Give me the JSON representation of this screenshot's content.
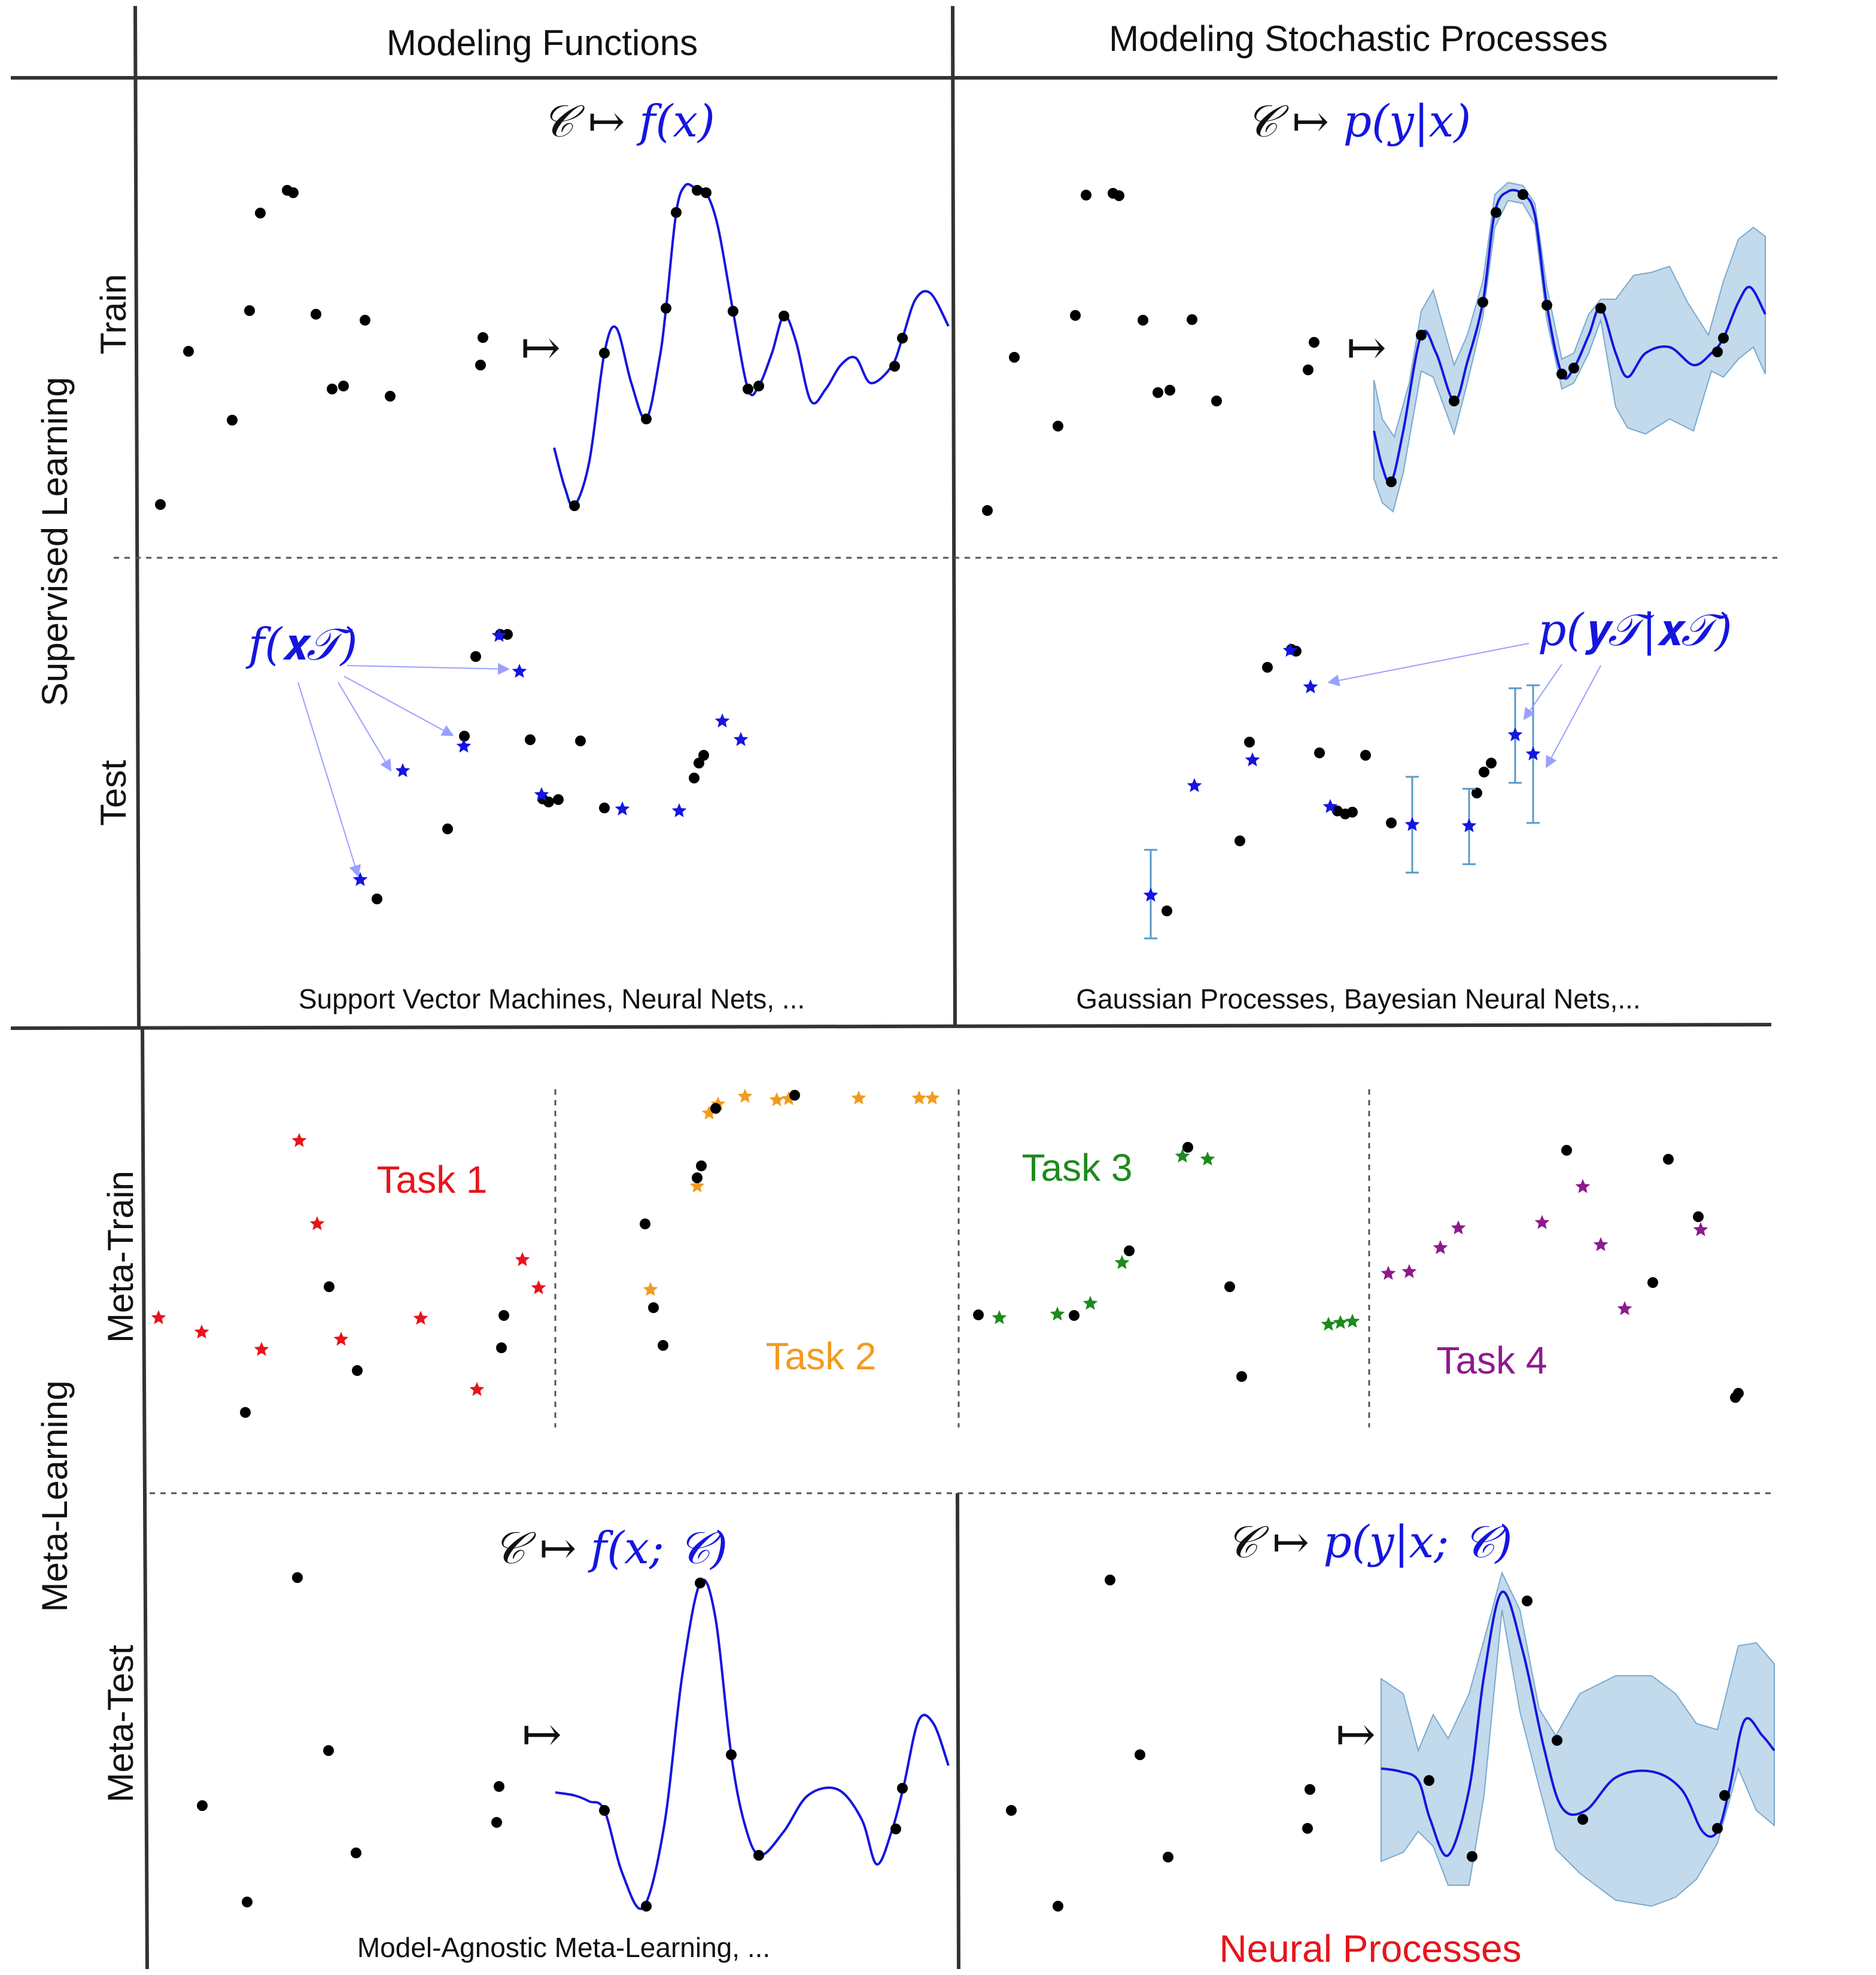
{
  "columns": {
    "left": "Modeling Functions",
    "right": "Modeling Stochastic Processes"
  },
  "rows": {
    "supervised": "Supervised Learning",
    "meta": "Meta-Learning"
  },
  "subrows": {
    "train": "Train",
    "test": "Test",
    "meta_train": "Meta-Train",
    "meta_test": "Meta-Test"
  },
  "formulas": {
    "sl_func_left": "𝒞 ↦ ",
    "sl_func_right": "f(x)",
    "sl_proc_left": "𝒞 ↦ ",
    "sl_proc_right": "p(y|x)",
    "test_func": "f(𝐱𝒯)",
    "test_proc": "p(𝐲𝒯|𝐱𝒯)",
    "mt_func_left": "𝒞 ↦ ",
    "mt_func_right": "f(x; 𝒞)",
    "mt_proc_left": "𝒞 ↦ ",
    "mt_proc_right": "p(y|x; 𝒞)",
    "mapsto": "↦"
  },
  "captions": {
    "sl_func": "Support Vector Machines, Neural Nets, ...",
    "sl_proc": "Gaussian Processes, Bayesian Neural Nets,...",
    "mt_func": "Model-Agnostic Meta-Learning, ...",
    "mt_proc": "Neural Processes"
  },
  "tasks": [
    {
      "label": "Task 1",
      "color": "#e8141a"
    },
    {
      "label": "Task 2",
      "color": "#f39a1e"
    },
    {
      "label": "Task 3",
      "color": "#1d8a1d"
    },
    {
      "label": "Task 4",
      "color": "#8e1a8e"
    }
  ],
  "colors": {
    "blue": "#1515e0",
    "band": "#b7d3e8",
    "bandStroke": "#7aa9cf",
    "errbar": "#5a9ac8",
    "point": "#000000"
  }
}
